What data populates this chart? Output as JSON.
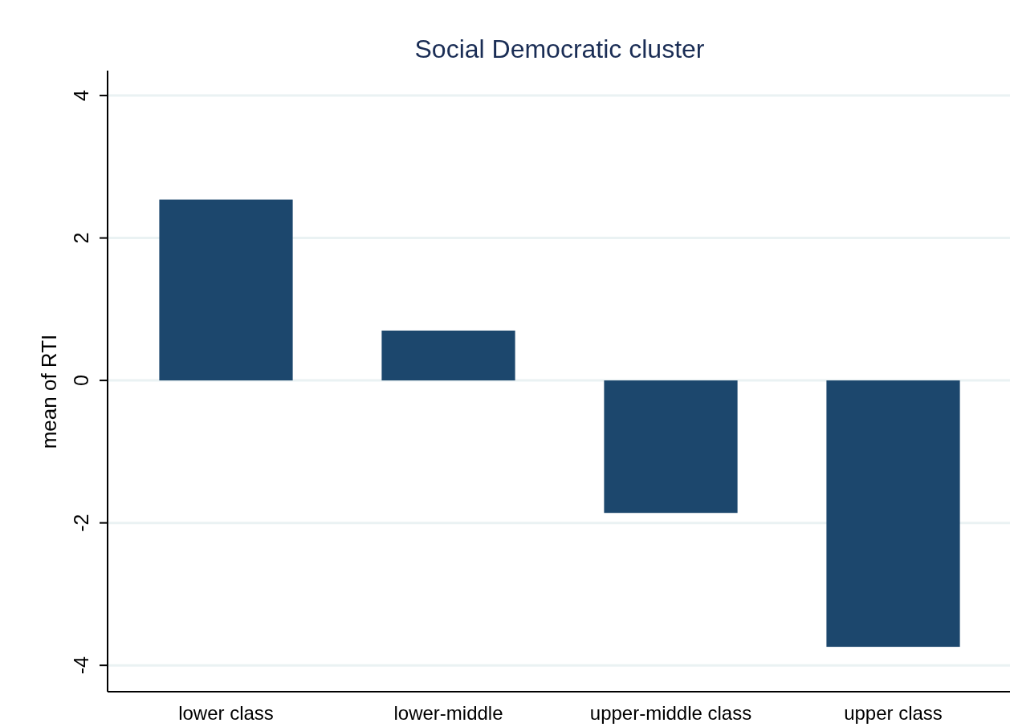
{
  "chart_data": {
    "type": "bar",
    "title": "Social Democratic cluster",
    "ylabel": "mean of RTI",
    "categories": [
      "lower class",
      "lower-middle",
      "upper-middle class",
      "upper class"
    ],
    "series": [
      {
        "color": "#1c476d",
        "values": [
          2.54,
          0.7,
          -1.86,
          -3.74
        ]
      }
    ],
    "ylim": [
      -4.37,
      4.35
    ],
    "yticks": [
      -4,
      -2,
      0,
      2,
      4
    ],
    "grid": "y"
  }
}
